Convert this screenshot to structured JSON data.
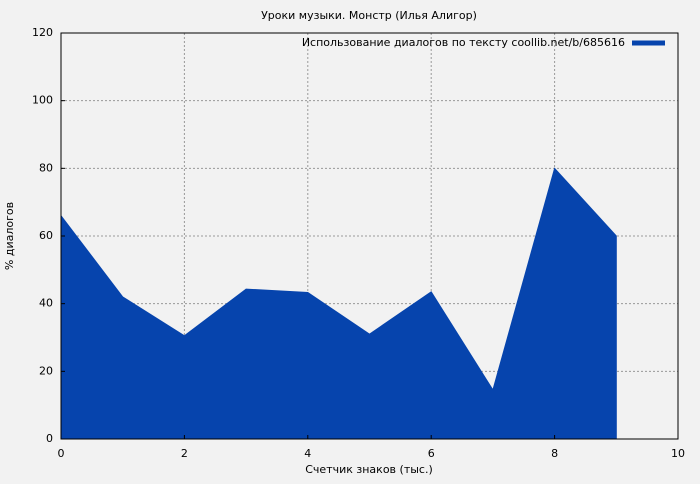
{
  "chart_data": {
    "type": "area",
    "title": "Уроки музыки. Монстр (Илья Алигор)",
    "x_label": "Счетчик знаков (тыс.)",
    "y_label": "% диалогов",
    "series": [
      {
        "name": "Использование диалогов по тексту coollib.net/b/685616",
        "color": "#0644ad",
        "x": [
          0,
          1,
          2,
          3,
          4,
          5,
          6,
          7,
          8,
          9
        ],
        "values": [
          66,
          42,
          30.5,
          44.3,
          43.3,
          31,
          43.5,
          14.5,
          80,
          60
        ]
      }
    ],
    "xlim": [
      0,
      10
    ],
    "xticks": [
      0,
      2,
      4,
      6,
      8,
      10
    ],
    "ylim": [
      0,
      120
    ],
    "yticks": [
      0,
      20,
      40,
      60,
      80,
      100,
      120
    ],
    "grid": true,
    "legend": "upper right"
  }
}
